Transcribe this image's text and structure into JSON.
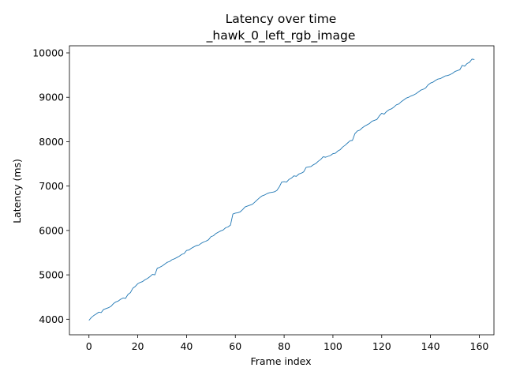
{
  "chart_data": {
    "type": "line",
    "title": "Latency over time",
    "subtitle": "_hawk_0_left_rgb_image",
    "xlabel": "Frame index",
    "ylabel": "Latency (ms)",
    "xlim": [
      -8,
      166
    ],
    "ylim": [
      3650,
      10160
    ],
    "x_ticks": [
      0,
      20,
      40,
      60,
      80,
      100,
      120,
      140,
      160
    ],
    "y_ticks": [
      4000,
      5000,
      6000,
      7000,
      8000,
      9000,
      10000
    ],
    "grid": false,
    "line_color": "#1f77b4",
    "series": [
      {
        "x": [
          0,
          1,
          2,
          3,
          4,
          5,
          6,
          7,
          8,
          9,
          10,
          11,
          12,
          13,
          14,
          15,
          16,
          17,
          18,
          19,
          20,
          21,
          22,
          23,
          24,
          25,
          26,
          27,
          28,
          29,
          30,
          31,
          32,
          33,
          34,
          35,
          36,
          37,
          38,
          39,
          40,
          41,
          42,
          43,
          44,
          45,
          46,
          47,
          48,
          49,
          50,
          51,
          52,
          53,
          54,
          55,
          56,
          57,
          58,
          59,
          60,
          61,
          62,
          63,
          64,
          65,
          66,
          67,
          68,
          69,
          70,
          71,
          72,
          73,
          74,
          75,
          76,
          77,
          78,
          79,
          80,
          81,
          82,
          83,
          84,
          85,
          86,
          87,
          88,
          89,
          90,
          91,
          92,
          93,
          94,
          95,
          96,
          97,
          98,
          99,
          100,
          101,
          102,
          103,
          104,
          105,
          106,
          107,
          108,
          109,
          110,
          111,
          112,
          113,
          114,
          115,
          116,
          117,
          118,
          119,
          120,
          121,
          122,
          123,
          124,
          125,
          126,
          127,
          128,
          129,
          130,
          131,
          132,
          133,
          134,
          135,
          136,
          137,
          138,
          139,
          140,
          141,
          142,
          143,
          144,
          145,
          146,
          147,
          148,
          149,
          150,
          151,
          152,
          153,
          154,
          155,
          156,
          157,
          158
        ],
        "values": [
          3975,
          4040,
          4085,
          4120,
          4160,
          4150,
          4220,
          4240,
          4260,
          4290,
          4350,
          4390,
          4410,
          4450,
          4480,
          4470,
          4560,
          4600,
          4700,
          4740,
          4800,
          4830,
          4850,
          4890,
          4920,
          4960,
          5010,
          5000,
          5150,
          5170,
          5200,
          5240,
          5280,
          5300,
          5340,
          5360,
          5390,
          5420,
          5460,
          5480,
          5550,
          5560,
          5600,
          5630,
          5660,
          5670,
          5710,
          5740,
          5760,
          5790,
          5860,
          5880,
          5930,
          5960,
          5990,
          6010,
          6060,
          6080,
          6120,
          6370,
          6390,
          6400,
          6420,
          6470,
          6530,
          6550,
          6570,
          6590,
          6640,
          6690,
          6740,
          6780,
          6800,
          6830,
          6850,
          6860,
          6870,
          6900,
          6980,
          7090,
          7100,
          7090,
          7150,
          7180,
          7230,
          7220,
          7270,
          7290,
          7320,
          7420,
          7430,
          7440,
          7480,
          7510,
          7560,
          7600,
          7660,
          7650,
          7670,
          7690,
          7730,
          7740,
          7790,
          7820,
          7880,
          7920,
          7970,
          8020,
          8030,
          8180,
          8240,
          8260,
          8310,
          8350,
          8380,
          8410,
          8460,
          8480,
          8500,
          8580,
          8640,
          8620,
          8680,
          8720,
          8740,
          8780,
          8830,
          8850,
          8900,
          8940,
          8980,
          9000,
          9030,
          9050,
          9080,
          9120,
          9160,
          9180,
          9210,
          9280,
          9320,
          9340,
          9380,
          9410,
          9420,
          9450,
          9480,
          9490,
          9510,
          9540,
          9580,
          9600,
          9620,
          9720,
          9700,
          9760,
          9790,
          9860,
          9850
        ]
      }
    ]
  }
}
